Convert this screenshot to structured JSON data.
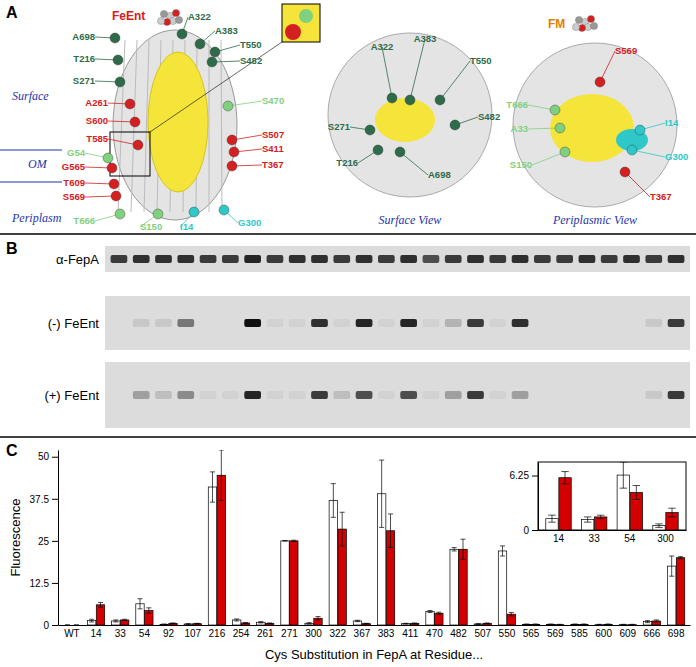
{
  "panel_a": {
    "label": "A",
    "ligand": "FeEnt",
    "ligand_2": "FM",
    "layers": [
      "Surface",
      "OM",
      "Periplasm"
    ],
    "side_view": {
      "residues": [
        {
          "label": "A698",
          "color": "#2e6b4a"
        },
        {
          "label": "T216",
          "color": "#2e6b4a"
        },
        {
          "label": "S271",
          "color": "#2e6b4a"
        },
        {
          "label": "A261",
          "color": "#d42020"
        },
        {
          "label": "S600",
          "color": "#d42020"
        },
        {
          "label": "T585",
          "color": "#d42020"
        },
        {
          "label": "G54",
          "color": "#7fd07f"
        },
        {
          "label": "G565",
          "color": "#d42020"
        },
        {
          "label": "T609",
          "color": "#d42020"
        },
        {
          "label": "S569",
          "color": "#d42020"
        },
        {
          "label": "T666",
          "color": "#7fd07f"
        },
        {
          "label": "S150",
          "color": "#7fd07f"
        },
        {
          "label": "I14",
          "color": "#2fc8c8"
        },
        {
          "label": "G300",
          "color": "#2fc8c8"
        },
        {
          "label": "A322",
          "color": "#2e6b4a"
        },
        {
          "label": "A383",
          "color": "#2e6b4a"
        },
        {
          "label": "T550",
          "color": "#2e6b4a"
        },
        {
          "label": "S482",
          "color": "#2e6b4a"
        },
        {
          "label": "S470",
          "color": "#7fd07f"
        },
        {
          "label": "S507",
          "color": "#d42020"
        },
        {
          "label": "S411",
          "color": "#d42020"
        },
        {
          "label": "T367",
          "color": "#d42020"
        }
      ]
    },
    "surface_view": {
      "title": "Surface View",
      "residues": [
        {
          "label": "A322",
          "color": "#2e6b4a"
        },
        {
          "label": "A383",
          "color": "#2e6b4a"
        },
        {
          "label": "T550",
          "color": "#2e6b4a"
        },
        {
          "label": "S482",
          "color": "#2e6b4a"
        },
        {
          "label": "S271",
          "color": "#2e6b4a"
        },
        {
          "label": "T216",
          "color": "#2e6b4a"
        },
        {
          "label": "A698",
          "color": "#2e6b4a"
        }
      ]
    },
    "periplasmic_view": {
      "title": "Periplasmic View",
      "residues": [
        {
          "label": "S569",
          "color": "#d42020"
        },
        {
          "label": "T666",
          "color": "#7fd07f"
        },
        {
          "label": "A33",
          "color": "#7fd07f"
        },
        {
          "label": "S150",
          "color": "#7fd07f"
        },
        {
          "label": "I14",
          "color": "#2fc8c8"
        },
        {
          "label": "G300",
          "color": "#2fc8c8"
        },
        {
          "label": "T367",
          "color": "#d42020"
        }
      ]
    }
  },
  "panel_b": {
    "label": "B",
    "rows": [
      {
        "label": "α-FepA",
        "intensity": [
          0.8,
          0.85,
          0.85,
          0.85,
          0.8,
          0.8,
          0.9,
          0.8,
          0.85,
          0.85,
          0.8,
          0.85,
          0.8,
          0.85,
          0.7,
          0.8,
          0.85,
          0.8,
          0.85,
          0.8,
          0.8,
          0.85,
          0.8,
          0.85,
          0.8,
          0.85
        ]
      },
      {
        "label": "(-) FeEnt",
        "intensity": [
          0.0,
          0.1,
          0.1,
          0.5,
          0.0,
          0.0,
          1.0,
          0.05,
          0.05,
          0.85,
          0.05,
          0.9,
          0.05,
          0.9,
          0.05,
          0.2,
          0.8,
          0.05,
          0.85,
          0.0,
          0.0,
          0.0,
          0.0,
          0.0,
          0.1,
          0.8
        ]
      },
      {
        "label": "(+) FeEnt",
        "intensity": [
          0.0,
          0.3,
          0.15,
          0.4,
          0.05,
          0.05,
          0.9,
          0.05,
          0.05,
          0.8,
          0.15,
          0.7,
          0.05,
          0.7,
          0.05,
          0.3,
          0.8,
          0.05,
          0.3,
          0.0,
          0.0,
          0.0,
          0.0,
          0.0,
          0.1,
          0.8
        ]
      }
    ]
  },
  "panel_c": {
    "label": "C"
  },
  "chart_data": [
    {
      "type": "bar",
      "x_label": "Cys Substitution in FepA at Residue...",
      "y_label": "Fluorescence",
      "categories": [
        "WT",
        "14",
        "33",
        "54",
        "92",
        "107",
        "216",
        "254",
        "261",
        "271",
        "300",
        "322",
        "367",
        "383",
        "411",
        "470",
        "482",
        "507",
        "550",
        "565",
        "569",
        "585",
        "600",
        "609",
        "666",
        "698"
      ],
      "series": [
        {
          "color": "#ffffff",
          "values": [
            0,
            1.3,
            1.2,
            6.3,
            0.2,
            0.3,
            41,
            1.5,
            0.8,
            25,
            0.5,
            37,
            1.2,
            39,
            0.4,
            4.0,
            22.5,
            0.3,
            22,
            0.2,
            0.2,
            0.2,
            0.1,
            0.1,
            1.0,
            17.5
          ],
          "errors": [
            0,
            0.4,
            0.3,
            1.5,
            0.1,
            0.1,
            4.5,
            0.3,
            0.2,
            0,
            0.2,
            5,
            0.2,
            10,
            0.1,
            0.3,
            0.5,
            0.1,
            1.5,
            0.1,
            0.1,
            0.1,
            0.1,
            0.1,
            0.3,
            3
          ]
        },
        {
          "color": "#d40000",
          "values": [
            0,
            6.0,
            1.5,
            4.3,
            0.5,
            0.4,
            44.5,
            0.6,
            0.5,
            25,
            2.0,
            28.5,
            0.4,
            28,
            0.5,
            3.5,
            22.5,
            0.5,
            3.2,
            0.2,
            0.1,
            0.2,
            0.2,
            0.1,
            1.2,
            20
          ],
          "errors": [
            0,
            0.7,
            0.2,
            0.8,
            0.1,
            0.1,
            7.5,
            0.1,
            0.1,
            0.2,
            0.5,
            5,
            0.1,
            5,
            0.1,
            0.3,
            3,
            0.1,
            0.5,
            0.1,
            0.1,
            0.1,
            0.1,
            0.1,
            0.3,
            0.3
          ]
        }
      ],
      "ylim": [
        0,
        52
      ],
      "yticks": [
        0,
        12.5,
        25,
        37.5,
        50
      ]
    },
    {
      "type": "bar",
      "categories": [
        "14",
        "33",
        "54",
        "300"
      ],
      "series": [
        {
          "color": "#ffffff",
          "values": [
            1.3,
            1.2,
            6.3,
            0.5
          ],
          "errors": [
            0.4,
            0.3,
            1.5,
            0.2
          ]
        },
        {
          "color": "#d40000",
          "values": [
            6.0,
            1.5,
            4.3,
            2.0
          ],
          "errors": [
            0.7,
            0.2,
            0.8,
            0.5
          ]
        }
      ],
      "ylim": [
        0,
        7.8
      ],
      "yticks": [
        0,
        6.25
      ]
    }
  ]
}
